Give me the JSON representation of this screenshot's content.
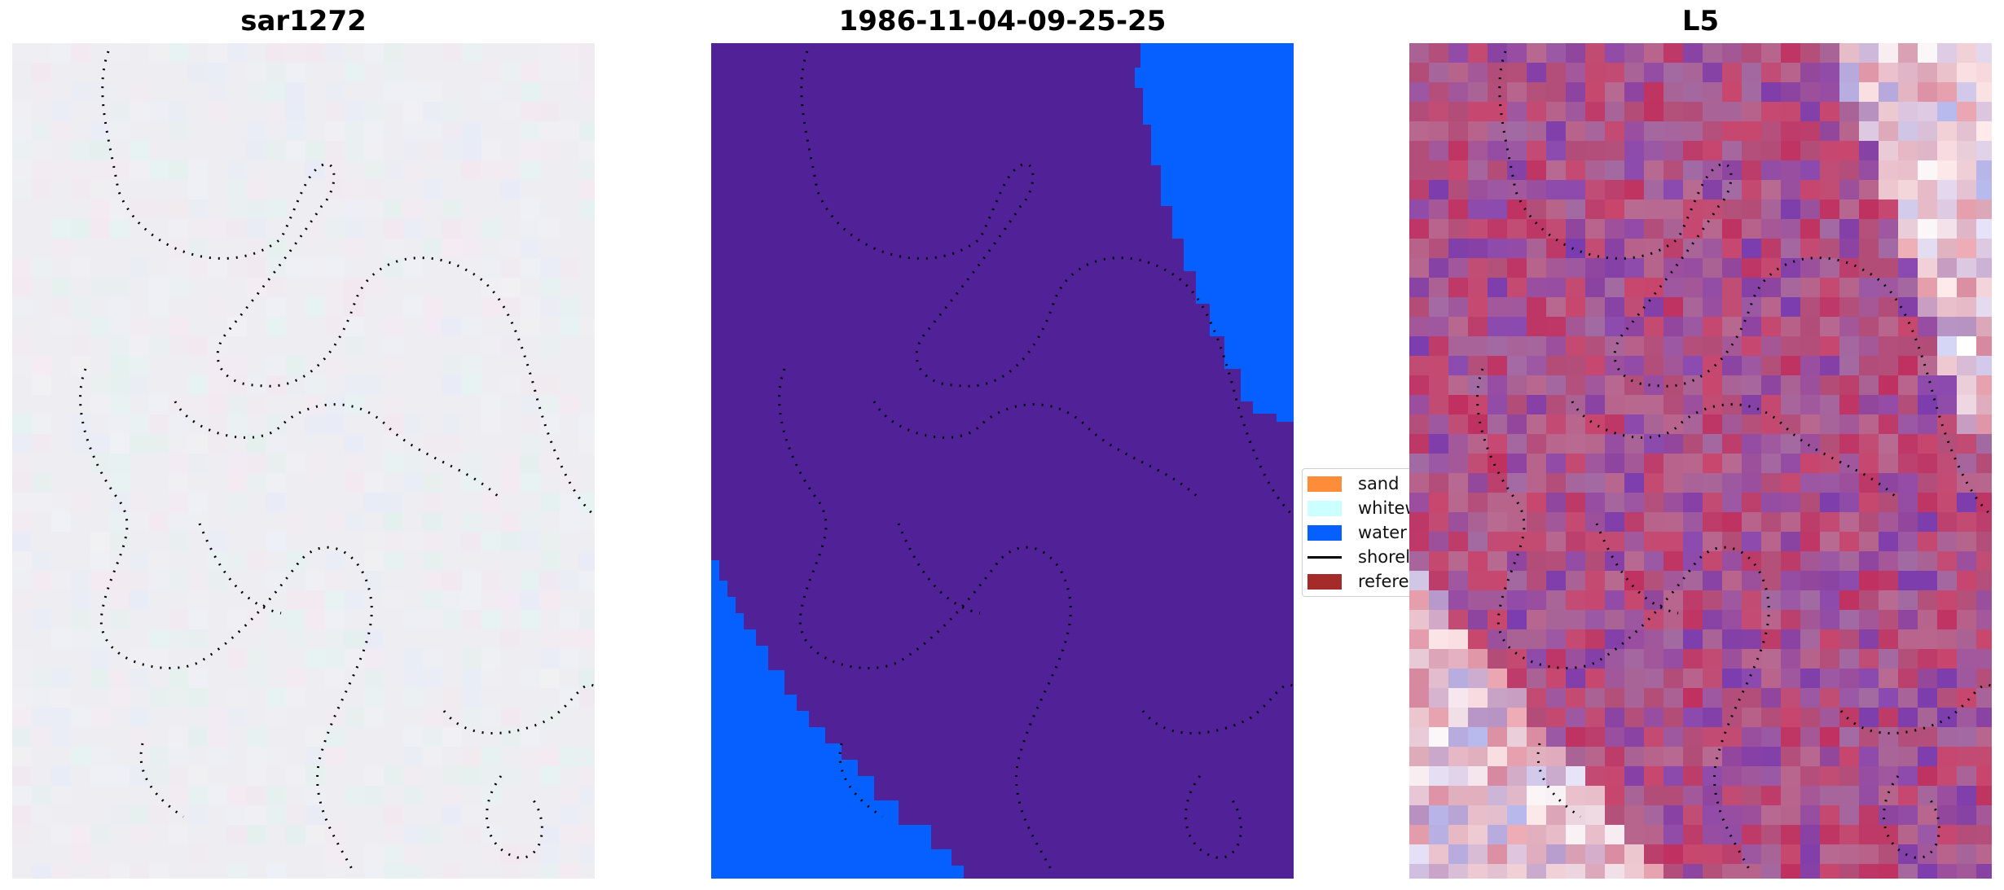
{
  "panels": [
    {
      "title": "sar1272",
      "name": "sar1272"
    },
    {
      "title": "1986-11-04-09-25-25",
      "name": "classification"
    },
    {
      "title": "L5",
      "name": "l5"
    }
  ],
  "legend": {
    "items": [
      {
        "label": "sand",
        "color": "#ff8c38",
        "kind": "patch"
      },
      {
        "label": "whitew",
        "color": "#ccffff",
        "kind": "patch"
      },
      {
        "label": "water",
        "color": "#0560ff",
        "kind": "patch"
      },
      {
        "label": "shorel",
        "color": "#000000",
        "kind": "line"
      },
      {
        "label": "referen",
        "color": "#a52a2a",
        "kind": "patch"
      }
    ]
  },
  "colors": {
    "land": "#512198",
    "water": "#0560ff",
    "sar_background": "#eeeef2"
  }
}
